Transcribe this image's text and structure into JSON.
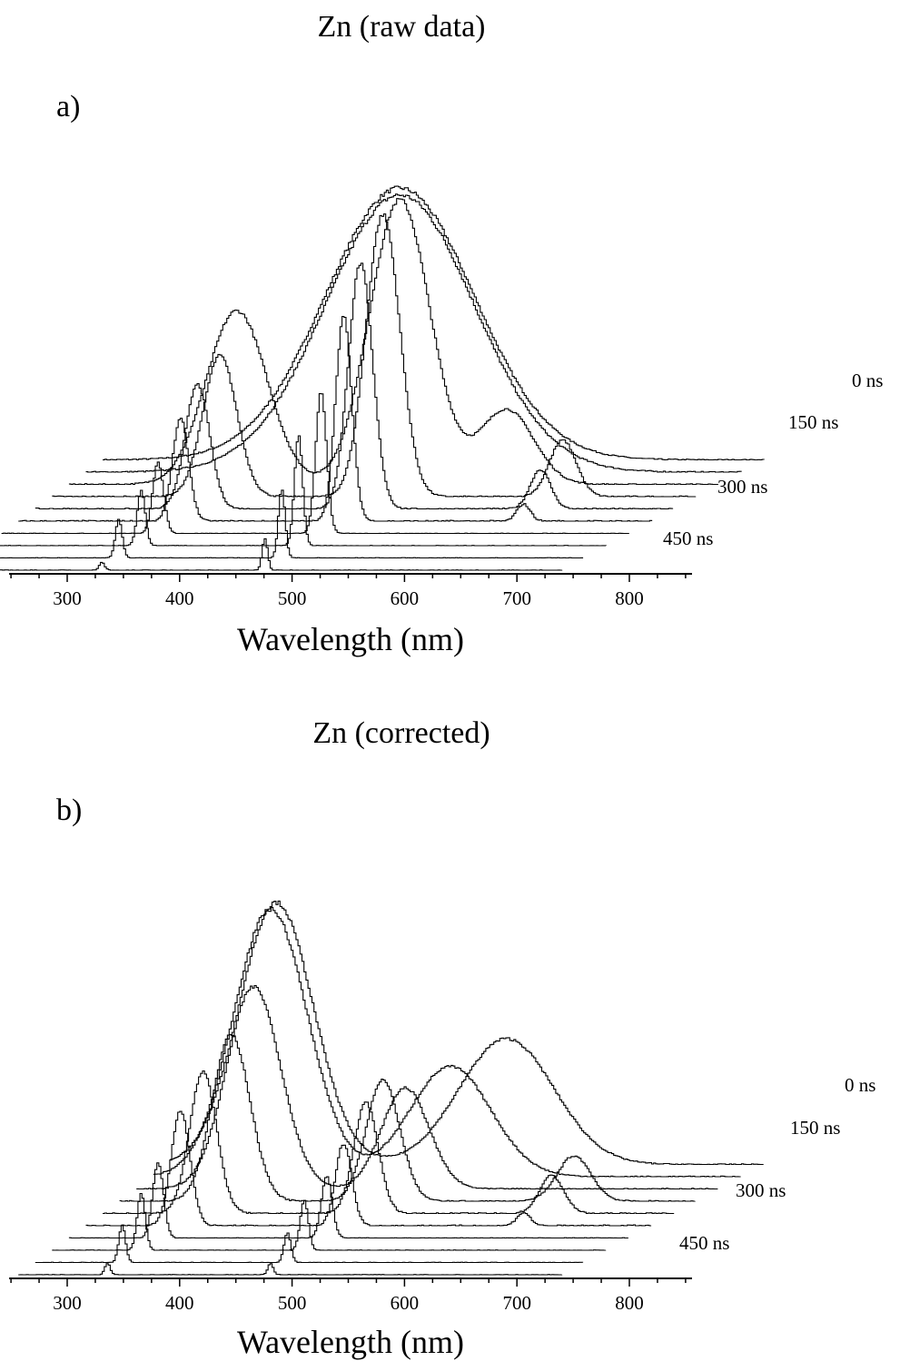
{
  "chart_data": [
    {
      "type": "line",
      "panel_label": "a)",
      "title": "Zn (raw data)",
      "xlabel": "Wavelength (nm)",
      "ylabel": "",
      "xlim": [
        250,
        850
      ],
      "x_ticks": [
        300,
        400,
        500,
        600,
        700,
        800
      ],
      "grid": false,
      "layout_style": "waterfall",
      "delay_labels": [
        "0 ns",
        "150 ns",
        "300 ns",
        "450 ns"
      ],
      "series": [
        {
          "x_start": 380,
          "x_end": 920,
          "peaks": [
            [
              595,
              1.0,
              110
            ]
          ],
          "shape": "broad"
        },
        {
          "x_start": 365,
          "x_end": 900,
          "peaks": [
            [
              595,
              0.97,
              110
            ]
          ],
          "shape": "broad"
        },
        {
          "x_start": 350,
          "x_end": 880,
          "peaks": [
            [
              450,
              0.58,
              45
            ],
            [
              595,
              0.95,
              45
            ],
            [
              690,
              0.25,
              40
            ]
          ],
          "shape": "mixed"
        },
        {
          "x_start": 335,
          "x_end": 860,
          "peaks": [
            [
              435,
              0.45,
              25
            ],
            [
              580,
              0.9,
              25
            ],
            [
              740,
              0.18,
              20
            ]
          ],
          "shape": "narrow"
        },
        {
          "x_start": 320,
          "x_end": 840,
          "peaks": [
            [
              415,
              0.38,
              18
            ],
            [
              560,
              0.75,
              18
            ],
            [
              720,
              0.12,
              15
            ]
          ],
          "shape": "narrow"
        },
        {
          "x_start": 305,
          "x_end": 820,
          "peaks": [
            [
              400,
              0.3,
              12
            ],
            [
              545,
              0.6,
              12
            ],
            [
              705,
              0.05,
              10
            ]
          ],
          "shape": "narrow"
        },
        {
          "x_start": 290,
          "x_end": 800,
          "peaks": [
            [
              380,
              0.2,
              8
            ],
            [
              525,
              0.4,
              8
            ]
          ],
          "shape": "lines"
        },
        {
          "x_start": 275,
          "x_end": 780,
          "peaks": [
            [
              365,
              0.15,
              6
            ],
            [
              505,
              0.3,
              6
            ]
          ],
          "shape": "lines"
        },
        {
          "x_start": 260,
          "x_end": 760,
          "peaks": [
            [
              345,
              0.1,
              5
            ],
            [
              490,
              0.18,
              5
            ]
          ],
          "shape": "lines"
        },
        {
          "x_start": 250,
          "x_end": 740,
          "peaks": [
            [
              330,
              0.02,
              4
            ],
            [
              475,
              0.08,
              4
            ]
          ],
          "shape": "lines"
        }
      ]
    },
    {
      "type": "line",
      "panel_label": "b)",
      "title": "Zn (corrected)",
      "xlabel": "Wavelength (nm)",
      "ylabel": "",
      "xlim": [
        250,
        850
      ],
      "x_ticks": [
        300,
        400,
        500,
        600,
        700,
        800
      ],
      "grid": false,
      "layout_style": "waterfall",
      "delay_labels": [
        "0 ns",
        "150 ns",
        "300 ns",
        "450 ns"
      ],
      "series": [
        {
          "x_start": 440,
          "x_end": 920,
          "peaks": [
            [
              485,
              1.0,
              55
            ],
            [
              690,
              0.48,
              70
            ]
          ],
          "shape": "mixed"
        },
        {
          "x_start": 425,
          "x_end": 900,
          "peaks": [
            [
              480,
              0.97,
              55
            ],
            [
              640,
              0.4,
              60
            ]
          ],
          "shape": "mixed"
        },
        {
          "x_start": 410,
          "x_end": 880,
          "peaks": [
            [
              465,
              0.7,
              40
            ],
            [
              600,
              0.35,
              35
            ]
          ],
          "shape": "mixed"
        },
        {
          "x_start": 395,
          "x_end": 860,
          "peaks": [
            [
              445,
              0.55,
              28
            ],
            [
              580,
              0.4,
              25
            ],
            [
              750,
              0.15,
              25
            ]
          ],
          "shape": "narrow"
        },
        {
          "x_start": 380,
          "x_end": 840,
          "peaks": [
            [
              420,
              0.45,
              20
            ],
            [
              565,
              0.35,
              18
            ],
            [
              730,
              0.12,
              18
            ]
          ],
          "shape": "narrow"
        },
        {
          "x_start": 365,
          "x_end": 820,
          "peaks": [
            [
              400,
              0.35,
              14
            ],
            [
              545,
              0.25,
              12
            ],
            [
              705,
              0.04,
              10
            ]
          ],
          "shape": "narrow"
        },
        {
          "x_start": 350,
          "x_end": 800,
          "peaks": [
            [
              380,
              0.22,
              8
            ],
            [
              530,
              0.18,
              8
            ]
          ],
          "shape": "lines"
        },
        {
          "x_start": 335,
          "x_end": 780,
          "peaks": [
            [
              365,
              0.16,
              6
            ],
            [
              510,
              0.14,
              6
            ]
          ],
          "shape": "lines"
        },
        {
          "x_start": 320,
          "x_end": 760,
          "peaks": [
            [
              348,
              0.1,
              5
            ],
            [
              495,
              0.08,
              5
            ]
          ],
          "shape": "lines"
        },
        {
          "x_start": 305,
          "x_end": 740,
          "peaks": [
            [
              335,
              0.03,
              4
            ],
            [
              480,
              0.03,
              4
            ]
          ],
          "shape": "lines"
        }
      ]
    }
  ]
}
